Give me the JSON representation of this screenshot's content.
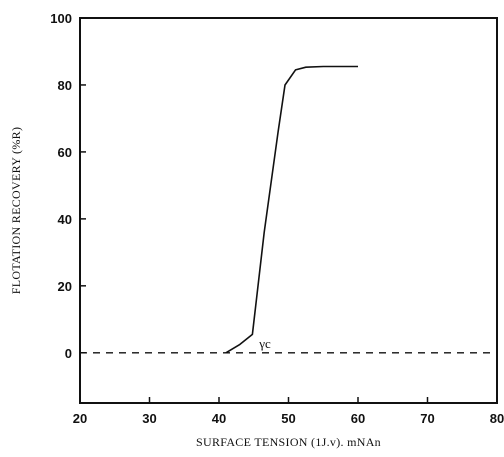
{
  "chart_data": {
    "type": "line",
    "xlabel": "SURFACE TENSION (1J.v). mNAn",
    "ylabel": "FLOTATION RECOVERY (%R)",
    "xlim": [
      20,
      80
    ],
    "ylim": [
      -15,
      100
    ],
    "xticks": [
      20,
      30,
      40,
      50,
      60,
      70,
      80
    ],
    "yticks": [
      0,
      20,
      40,
      60,
      80,
      100
    ],
    "grid": false,
    "legend": "none",
    "series": [
      {
        "style": "solid",
        "color": "#111111",
        "x": [
          41,
          43,
          44.8,
          46.5,
          48.5,
          49.5,
          51,
          52.5,
          55,
          60
        ],
        "y": [
          0,
          2.5,
          5.5,
          36,
          66,
          80,
          84.5,
          85.3,
          85.5,
          85.5
        ]
      },
      {
        "style": "dashed",
        "color": "#111111",
        "x": [
          20,
          80
        ],
        "y": [
          0,
          0
        ]
      }
    ],
    "annotations": [
      {
        "text": "γc",
        "x": 45.8,
        "y": 1.5
      }
    ]
  }
}
